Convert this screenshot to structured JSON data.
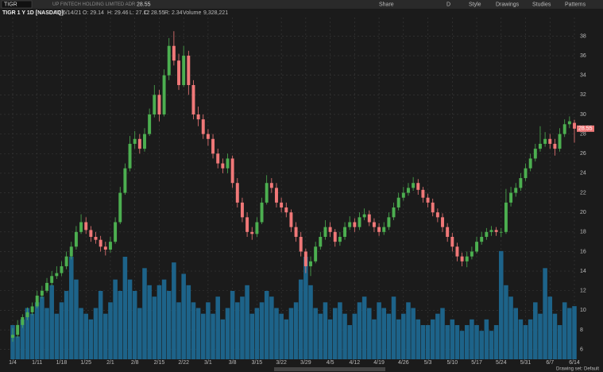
{
  "toolbar": {
    "symbol": "TIGR",
    "company": "UP FINTECH HOLDING LIMITED ADR",
    "share": "Share",
    "period": "D",
    "style": "Style",
    "drawings": "Drawings",
    "studies": "Studies",
    "patterns": "Patterns",
    "drawing_set": "Drawing set: Default"
  },
  "chart_data": {
    "type": "candlestick",
    "info": {
      "symbol_line": "TIGR 1 Y 1D [NASDAQ]",
      "date": "D: 6/14/21",
      "open": "O: 29.14",
      "high": "H: 29.46",
      "low": "L: 27.12",
      "close": "C: 28.55",
      "range": "R: 2.34",
      "volume_label": "Volume",
      "volume": "9,328,221"
    },
    "categories": [
      "1/4",
      null,
      null,
      null,
      null,
      "1/11",
      null,
      null,
      null,
      null,
      "1/18",
      null,
      null,
      null,
      null,
      "1/25",
      null,
      null,
      null,
      null,
      "2/1",
      null,
      null,
      null,
      null,
      "2/8",
      null,
      null,
      null,
      null,
      "2/15",
      null,
      null,
      null,
      null,
      "2/22",
      null,
      null,
      null,
      null,
      "3/1",
      null,
      null,
      null,
      null,
      "3/8",
      null,
      null,
      null,
      null,
      "3/15",
      null,
      null,
      null,
      null,
      "3/22",
      null,
      null,
      null,
      null,
      "3/29",
      null,
      null,
      null,
      null,
      "4/5",
      null,
      null,
      null,
      null,
      "4/12",
      null,
      null,
      null,
      null,
      "4/19",
      null,
      null,
      null,
      null,
      "4/26",
      null,
      null,
      null,
      null,
      "5/3",
      null,
      null,
      null,
      null,
      "5/10",
      null,
      null,
      null,
      null,
      "5/17",
      null,
      null,
      null,
      null,
      "5/24",
      null,
      null,
      null,
      null,
      "5/31",
      null,
      null,
      null,
      null,
      "6/7",
      null,
      null,
      null,
      null,
      "6/14"
    ],
    "open": [
      7.2,
      7.5,
      8.5,
      9.3,
      9.8,
      10.4,
      11.5,
      12,
      12.8,
      13.5,
      13.8,
      14.5,
      15.5,
      16.5,
      18,
      19,
      18.2,
      17.5,
      17.2,
      16.5,
      16.2,
      17,
      19,
      22,
      24.5,
      27,
      27.5,
      26.5,
      28,
      30,
      32,
      30,
      34,
      37,
      35.5,
      33,
      36,
      33,
      30,
      29.5,
      28,
      27.5,
      26,
      25,
      24.5,
      25.5,
      23,
      21,
      19.5,
      18,
      17.8,
      19,
      21,
      23,
      22.5,
      21,
      20.5,
      20,
      18.5,
      17.5,
      16,
      14.5,
      15,
      16.5,
      17.5,
      18.5,
      18,
      17,
      17.5,
      18.5,
      19,
      18.5,
      19.5,
      19.8,
      19,
      18.5,
      18,
      18.5,
      19.5,
      20.5,
      21.5,
      22,
      22.5,
      23,
      22.3,
      21.5,
      21,
      20,
      19.5,
      18.5,
      17.5,
      16.5,
      15.5,
      15,
      15.5,
      16,
      17,
      17.5,
      18,
      18.2,
      18,
      18,
      21,
      22,
      22.5,
      23.5,
      24.5,
      25.5,
      26.5,
      27,
      27.5,
      27,
      26.5,
      28,
      29,
      29.14
    ],
    "high": [
      8.2,
      9.0,
      9.6,
      10.3,
      10.8,
      12.0,
      12.5,
      13.3,
      14.0,
      14.5,
      15.0,
      16.0,
      17.0,
      18.6,
      19.8,
      19.5,
      18.6,
      18.0,
      17.6,
      17.0,
      17.5,
      19.5,
      22.6,
      25.0,
      27.8,
      28.3,
      28.0,
      28.6,
      30.6,
      33.0,
      32.5,
      34.6,
      37.8,
      38.5,
      36.2,
      37.0,
      36.5,
      33.5,
      30.8,
      30.0,
      28.5,
      28.0,
      26.5,
      25.5,
      26.0,
      25.8,
      23.5,
      21.5,
      20.0,
      18.5,
      19.5,
      21.5,
      23.8,
      23.5,
      23.0,
      21.5,
      21.0,
      20.3,
      19.0,
      18.0,
      16.3,
      15.5,
      17.0,
      18.0,
      19.2,
      19.0,
      18.3,
      18.0,
      19.0,
      19.6,
      19.4,
      20.0,
      20.4,
      20.2,
      19.4,
      18.9,
      19.0,
      20.0,
      21.0,
      22.0,
      22.6,
      23.0,
      23.6,
      23.4,
      22.6,
      21.9,
      21.4,
      20.4,
      19.9,
      18.9,
      17.9,
      16.9,
      15.9,
      16.0,
      16.5,
      17.5,
      18.0,
      18.4,
      18.6,
      18.5,
      18.4,
      22.4,
      22.6,
      23.0,
      24.0,
      25.0,
      26.0,
      27.0,
      28.8,
      28.2,
      28.0,
      27.5,
      28.6,
      29.5,
      29.8,
      29.46
    ],
    "low": [
      6.8,
      7.2,
      8.2,
      9.0,
      9.5,
      10.2,
      11.2,
      11.8,
      12.5,
      13.2,
      13.5,
      14.2,
      15.2,
      16.2,
      17.8,
      17.8,
      17.0,
      16.8,
      16.0,
      15.6,
      15.9,
      16.8,
      18.8,
      21.8,
      24.2,
      26.5,
      26.0,
      26.2,
      27.8,
      29.7,
      29.3,
      29.8,
      33.5,
      35.0,
      32.5,
      32.8,
      32.0,
      29.5,
      28.8,
      27.5,
      26.8,
      25.5,
      24.5,
      24.0,
      24.0,
      22.5,
      20.5,
      19.0,
      17.5,
      17.2,
      17.5,
      18.8,
      20.8,
      22.0,
      20.5,
      20.0,
      19.5,
      18.0,
      17.0,
      15.5,
      13.8,
      13.5,
      14.8,
      16.2,
      17.2,
      17.5,
      16.5,
      16.6,
      17.2,
      18.2,
      18.0,
      18.2,
      19.2,
      18.6,
      18.0,
      17.6,
      17.7,
      18.2,
      19.2,
      20.2,
      21.2,
      21.7,
      22.2,
      21.8,
      21.0,
      20.5,
      19.6,
      19.0,
      18.0,
      17.0,
      16.0,
      15.0,
      14.5,
      14.4,
      15.2,
      15.8,
      16.7,
      17.2,
      17.6,
      17.6,
      17.5,
      17.8,
      20.6,
      21.6,
      22.2,
      23.2,
      24.2,
      25.2,
      26.2,
      26.7,
      26.5,
      25.8,
      26.2,
      27.7,
      28.6,
      27.12
    ],
    "close": [
      7.5,
      8.5,
      9.3,
      9.8,
      10.4,
      11.5,
      12,
      12.8,
      13.5,
      13.8,
      14.5,
      15.5,
      16.5,
      18,
      19,
      18.2,
      17.5,
      17.2,
      16.5,
      16.2,
      17,
      19,
      22,
      24.5,
      27,
      27.5,
      26.5,
      28,
      30,
      32,
      30,
      34,
      37,
      35.5,
      33,
      36,
      33,
      30,
      29.5,
      28,
      27.5,
      26,
      25,
      24.5,
      25.5,
      23,
      21,
      19.5,
      18,
      17.8,
      19,
      21,
      23,
      22.5,
      21,
      20.5,
      20,
      18.5,
      17.5,
      16,
      14.5,
      15,
      16.5,
      17.5,
      18.5,
      18,
      17,
      17.5,
      18.5,
      19,
      18.5,
      19.5,
      19.8,
      19,
      18.5,
      18,
      18.5,
      19.5,
      20.5,
      21.5,
      22,
      22.5,
      23,
      22.3,
      21.5,
      21,
      20,
      19.5,
      18.5,
      17.5,
      16.5,
      15.5,
      15,
      15.5,
      16,
      17,
      17.5,
      18,
      18.2,
      18,
      18,
      21,
      22,
      22.5,
      23.5,
      24.5,
      25.5,
      26.5,
      27,
      27.5,
      27,
      26.5,
      28,
      29,
      29.3,
      28.55
    ],
    "volume": [
      6000000,
      4000000,
      7000000,
      9000000,
      8000000,
      10000000,
      11000000,
      9000000,
      13000000,
      8000000,
      10000000,
      12000000,
      18000000,
      14000000,
      9000000,
      8000000,
      7000000,
      9000000,
      12000000,
      8000000,
      10000000,
      14000000,
      12000000,
      18000000,
      14000000,
      12000000,
      9000000,
      16000000,
      13000000,
      11000000,
      13000000,
      14000000,
      12000000,
      17000000,
      10000000,
      15000000,
      13000000,
      10000000,
      9000000,
      8000000,
      10000000,
      8000000,
      11000000,
      7000000,
      9000000,
      12000000,
      10000000,
      11000000,
      13000000,
      8000000,
      9000000,
      10000000,
      12000000,
      11000000,
      9000000,
      8000000,
      7000000,
      9000000,
      10000000,
      14000000,
      18000000,
      13000000,
      9000000,
      8000000,
      10000000,
      7000000,
      9000000,
      10000000,
      8000000,
      6000000,
      8000000,
      10000000,
      11000000,
      9000000,
      7000000,
      10000000,
      9000000,
      8000000,
      11000000,
      7000000,
      8000000,
      10000000,
      9000000,
      7000000,
      6000000,
      6000000,
      7000000,
      8000000,
      9000000,
      6000000,
      7000000,
      6000000,
      5000000,
      6000000,
      7000000,
      6000000,
      5000000,
      7000000,
      5000000,
      6000000,
      19000000,
      13000000,
      11000000,
      9000000,
      7000000,
      6000000,
      7000000,
      10000000,
      8000000,
      16000000,
      11000000,
      8000000,
      6000000,
      10000000,
      9000000,
      9328221
    ],
    "ylim": [
      5,
      39.9
    ],
    "yticks": [
      6,
      8,
      10,
      12,
      14,
      16,
      18,
      20,
      22,
      24,
      26,
      28,
      30,
      32,
      34,
      36,
      38
    ],
    "volume_lim": [
      0,
      60000000
    ],
    "grid": true,
    "up_color": "#4caf50",
    "down_color": "#f07878",
    "volume_color": "#1d6389"
  }
}
